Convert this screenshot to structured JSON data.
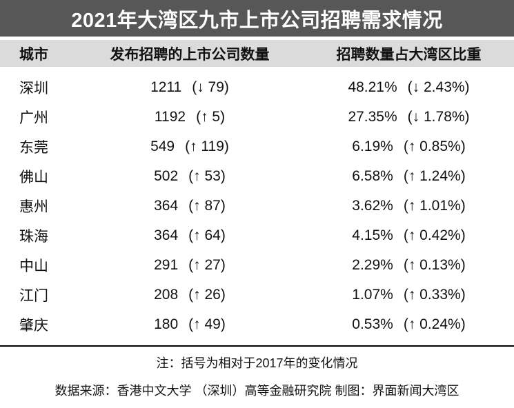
{
  "title": "2021年大湾区九市上市公司招聘需求情况",
  "colors": {
    "title_bar_bg": "#575757",
    "title_text": "#ffffff",
    "header_band_bg": "#dbdbdb",
    "body_text": "#111111"
  },
  "table": {
    "headers": {
      "city": "城市",
      "companies": "发布招聘的上市公司数量",
      "share": "招聘数量占大湾区比重"
    },
    "rows": [
      {
        "city": "深圳",
        "companies": "1211",
        "companies_change": "(↓ 79)",
        "share": "48.21%",
        "share_change": "(↓ 2.43%)"
      },
      {
        "city": "广州",
        "companies": "1192",
        "companies_change": "(↑ 5)",
        "share": "27.35%",
        "share_change": "(↓ 1.78%)"
      },
      {
        "city": "东莞",
        "companies": "549",
        "companies_change": "(↑ 119)",
        "share": "6.19%",
        "share_change": "(↑ 0.85%)"
      },
      {
        "city": "佛山",
        "companies": "502",
        "companies_change": "(↑ 53)",
        "share": "6.58%",
        "share_change": "(↑ 1.24%)"
      },
      {
        "city": "惠州",
        "companies": "364",
        "companies_change": "(↑ 87)",
        "share": "3.62%",
        "share_change": "(↑ 1.01%)"
      },
      {
        "city": "珠海",
        "companies": "364",
        "companies_change": "(↑ 64)",
        "share": "4.15%",
        "share_change": "(↑ 0.42%)"
      },
      {
        "city": "中山",
        "companies": "291",
        "companies_change": "(↑ 27)",
        "share": "2.29%",
        "share_change": "(↑ 0.13%)"
      },
      {
        "city": "江门",
        "companies": "208",
        "companies_change": "(↑ 26)",
        "share": "1.07%",
        "share_change": "(↑ 0.33%)"
      },
      {
        "city": "肇庆",
        "companies": "180",
        "companies_change": "(↑ 49)",
        "share": "0.53%",
        "share_change": "(↑ 0.24%)"
      }
    ]
  },
  "footer": {
    "note": "注：括号为相对于2017年的变化情况",
    "source": "数据来源：香港中文大学 （深圳）高等金融研究院 制图：界面新闻大湾区"
  },
  "chart_data": {
    "type": "table",
    "title": "2021年大湾区九市上市公司招聘需求情况",
    "columns": [
      "城市",
      "发布招聘的上市公司数量",
      "招聘数量占大湾区比重"
    ],
    "rows": [
      {
        "city": "深圳",
        "companies": 1211,
        "companies_change_vs_2017": -79,
        "share_pct": 48.21,
        "share_change_pct_vs_2017": -2.43
      },
      {
        "city": "广州",
        "companies": 1192,
        "companies_change_vs_2017": 5,
        "share_pct": 27.35,
        "share_change_pct_vs_2017": -1.78
      },
      {
        "city": "东莞",
        "companies": 549,
        "companies_change_vs_2017": 119,
        "share_pct": 6.19,
        "share_change_pct_vs_2017": 0.85
      },
      {
        "city": "佛山",
        "companies": 502,
        "companies_change_vs_2017": 53,
        "share_pct": 6.58,
        "share_change_pct_vs_2017": 1.24
      },
      {
        "city": "惠州",
        "companies": 364,
        "companies_change_vs_2017": 87,
        "share_pct": 3.62,
        "share_change_pct_vs_2017": 1.01
      },
      {
        "city": "珠海",
        "companies": 364,
        "companies_change_vs_2017": 64,
        "share_pct": 4.15,
        "share_change_pct_vs_2017": 0.42
      },
      {
        "city": "中山",
        "companies": 291,
        "companies_change_vs_2017": 27,
        "share_pct": 2.29,
        "share_change_pct_vs_2017": 0.13
      },
      {
        "city": "江门",
        "companies": 208,
        "companies_change_vs_2017": 26,
        "share_pct": 1.07,
        "share_change_pct_vs_2017": 0.33
      },
      {
        "city": "肇庆",
        "companies": 180,
        "companies_change_vs_2017": 49,
        "share_pct": 0.53,
        "share_change_pct_vs_2017": 0.24
      }
    ],
    "note": "注：括号为相对于2017年的变化情况",
    "source": "数据来源：香港中文大学 （深圳）高等金融研究院 制图：界面新闻大湾区"
  }
}
